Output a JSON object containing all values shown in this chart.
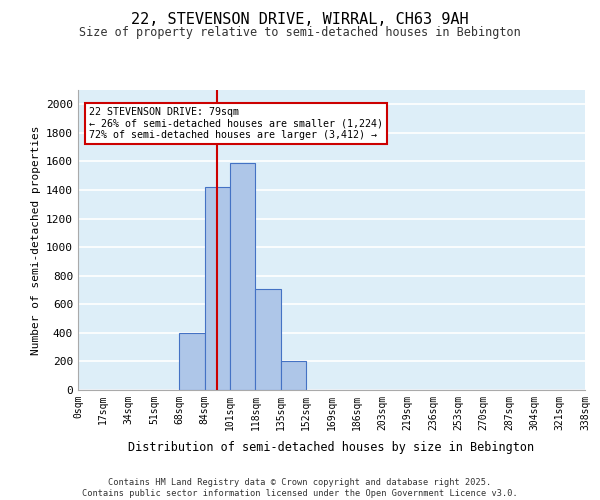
{
  "title_line1": "22, STEVENSON DRIVE, WIRRAL, CH63 9AH",
  "title_line2": "Size of property relative to semi-detached houses in Bebington",
  "xlabel": "Distribution of semi-detached houses by size in Bebington",
  "ylabel": "Number of semi-detached properties",
  "bin_labels": [
    "0sqm",
    "17sqm",
    "34sqm",
    "51sqm",
    "68sqm",
    "84sqm",
    "101sqm",
    "118sqm",
    "135sqm",
    "152sqm",
    "169sqm",
    "186sqm",
    "203sqm",
    "219sqm",
    "236sqm",
    "253sqm",
    "270sqm",
    "287sqm",
    "304sqm",
    "321sqm",
    "338sqm"
  ],
  "values": [
    0,
    0,
    0,
    0,
    400,
    1420,
    1590,
    710,
    205,
    0,
    0,
    0,
    0,
    0,
    0,
    0,
    0,
    0,
    0,
    0
  ],
  "bar_color": "#aec6e8",
  "bar_edge_color": "#4472c4",
  "background_color": "#ddeef8",
  "grid_color": "#ffffff",
  "property_line_x": 5.47,
  "annotation_text_line1": "22 STEVENSON DRIVE: 79sqm",
  "annotation_text_line2": "← 26% of semi-detached houses are smaller (1,224)",
  "annotation_text_line3": "72% of semi-detached houses are larger (3,412) →",
  "annotation_box_color": "#ffffff",
  "annotation_box_edge_color": "#cc0000",
  "vline_color": "#cc0000",
  "ylim": [
    0,
    2100
  ],
  "yticks": [
    0,
    200,
    400,
    600,
    800,
    1000,
    1200,
    1400,
    1600,
    1800,
    2000
  ],
  "footer_line1": "Contains HM Land Registry data © Crown copyright and database right 2025.",
  "footer_line2": "Contains public sector information licensed under the Open Government Licence v3.0."
}
